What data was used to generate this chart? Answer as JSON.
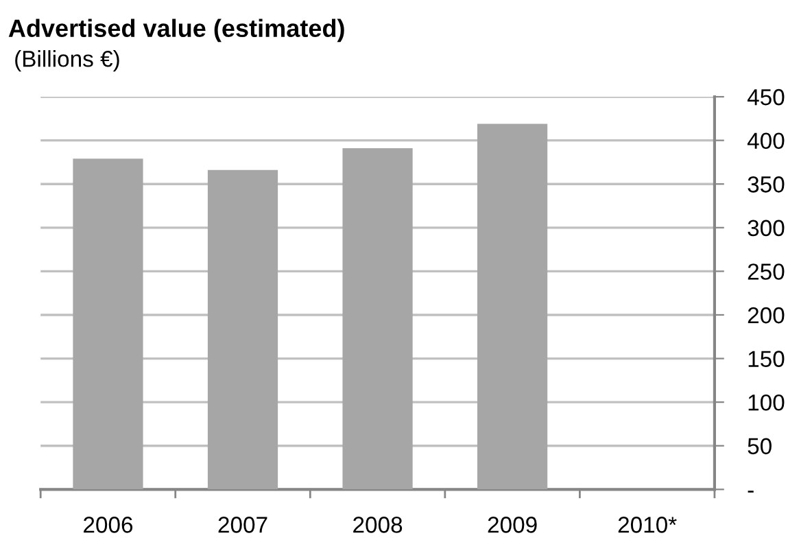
{
  "chart_data": {
    "type": "bar",
    "title": "Advertised value (estimated)",
    "subtitle": "(Billions €)",
    "categories": [
      "2006",
      "2007",
      "2008",
      "2009",
      "2010*"
    ],
    "values": [
      379,
      366,
      391,
      419,
      null
    ],
    "color": "#a6a6a6",
    "ylim": [
      0,
      450
    ],
    "yticks": [
      {
        "value": 0,
        "label": "-"
      },
      50,
      100,
      150,
      200,
      250,
      300,
      350,
      400,
      450
    ],
    "grid": "y",
    "legend": false
  }
}
